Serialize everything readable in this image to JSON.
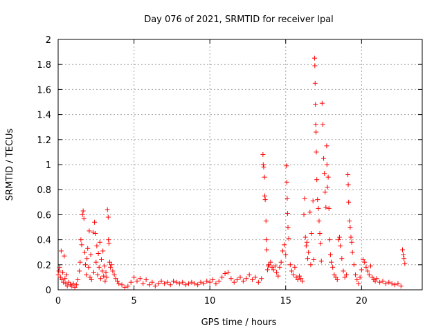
{
  "chart_data": {
    "type": "scatter",
    "title": "Day 076 of 2021, SRMTID for receiver lpal",
    "xlabel": "GPS time / hours",
    "ylabel": "SRMTID / TECUs",
    "xlim": [
      0,
      24
    ],
    "ylim": [
      0,
      2
    ],
    "xticks": [
      0,
      5,
      10,
      15,
      20
    ],
    "yticks": [
      0,
      0.2,
      0.4,
      0.6,
      0.8,
      1,
      1.2,
      1.4,
      1.6,
      1.8,
      2
    ],
    "grid": true,
    "marker": "+",
    "color": "#ff0000",
    "series": [
      {
        "name": "SRMTID",
        "points": [
          [
            0.0,
            0.12
          ],
          [
            0.05,
            0.15
          ],
          [
            0.1,
            0.18
          ],
          [
            0.15,
            0.1
          ],
          [
            0.2,
            0.31
          ],
          [
            0.25,
            0.08
          ],
          [
            0.3,
            0.14
          ],
          [
            0.35,
            0.06
          ],
          [
            0.4,
            0.27
          ],
          [
            0.45,
            0.09
          ],
          [
            0.5,
            0.05
          ],
          [
            0.55,
            0.12
          ],
          [
            0.6,
            0.03
          ],
          [
            0.7,
            0.06
          ],
          [
            0.8,
            0.04
          ],
          [
            0.9,
            0.03
          ],
          [
            1.0,
            0.05
          ],
          [
            1.1,
            0.02
          ],
          [
            1.2,
            0.04
          ],
          [
            1.3,
            0.08
          ],
          [
            1.4,
            0.15
          ],
          [
            1.45,
            0.22
          ],
          [
            1.5,
            0.4
          ],
          [
            1.55,
            0.36
          ],
          [
            1.6,
            0.6
          ],
          [
            1.65,
            0.63
          ],
          [
            1.7,
            0.57
          ],
          [
            1.75,
            0.3
          ],
          [
            1.8,
            0.2
          ],
          [
            1.85,
            0.12
          ],
          [
            1.9,
            0.25
          ],
          [
            1.95,
            0.33
          ],
          [
            2.0,
            0.18
          ],
          [
            2.05,
            0.47
          ],
          [
            2.1,
            0.1
          ],
          [
            2.15,
            0.28
          ],
          [
            2.2,
            0.08
          ],
          [
            2.3,
            0.46
          ],
          [
            2.35,
            0.14
          ],
          [
            2.4,
            0.54
          ],
          [
            2.45,
            0.45
          ],
          [
            2.5,
            0.22
          ],
          [
            2.55,
            0.35
          ],
          [
            2.6,
            0.12
          ],
          [
            2.65,
            0.29
          ],
          [
            2.7,
            0.18
          ],
          [
            2.75,
            0.38
          ],
          [
            2.8,
            0.09
          ],
          [
            2.85,
            0.24
          ],
          [
            2.9,
            0.15
          ],
          [
            2.95,
            0.31
          ],
          [
            3.0,
            0.11
          ],
          [
            3.05,
            0.19
          ],
          [
            3.1,
            0.07
          ],
          [
            3.15,
            0.14
          ],
          [
            3.2,
            0.1
          ],
          [
            3.25,
            0.64
          ],
          [
            3.3,
            0.58
          ],
          [
            3.32,
            0.4
          ],
          [
            3.35,
            0.37
          ],
          [
            3.4,
            0.22
          ],
          [
            3.45,
            0.18
          ],
          [
            3.5,
            0.2
          ],
          [
            3.6,
            0.15
          ],
          [
            3.7,
            0.12
          ],
          [
            3.8,
            0.09
          ],
          [
            3.9,
            0.07
          ],
          [
            4.0,
            0.05
          ],
          [
            4.2,
            0.04
          ],
          [
            4.4,
            0.02
          ],
          [
            4.6,
            0.03
          ],
          [
            4.8,
            0.06
          ],
          [
            5.0,
            0.1
          ],
          [
            5.2,
            0.07
          ],
          [
            5.4,
            0.09
          ],
          [
            5.6,
            0.05
          ],
          [
            5.8,
            0.08
          ],
          [
            6.0,
            0.04
          ],
          [
            6.2,
            0.06
          ],
          [
            6.4,
            0.03
          ],
          [
            6.6,
            0.05
          ],
          [
            6.8,
            0.07
          ],
          [
            7.0,
            0.05
          ],
          [
            7.2,
            0.06
          ],
          [
            7.4,
            0.04
          ],
          [
            7.6,
            0.07
          ],
          [
            7.8,
            0.06
          ],
          [
            8.0,
            0.05
          ],
          [
            8.2,
            0.06
          ],
          [
            8.4,
            0.04
          ],
          [
            8.6,
            0.05
          ],
          [
            8.8,
            0.06
          ],
          [
            9.0,
            0.05
          ],
          [
            9.2,
            0.04
          ],
          [
            9.4,
            0.06
          ],
          [
            9.6,
            0.05
          ],
          [
            9.8,
            0.07
          ],
          [
            10.0,
            0.06
          ],
          [
            10.2,
            0.08
          ],
          [
            10.4,
            0.05
          ],
          [
            10.6,
            0.07
          ],
          [
            10.8,
            0.1
          ],
          [
            11.0,
            0.13
          ],
          [
            11.2,
            0.14
          ],
          [
            11.4,
            0.09
          ],
          [
            11.6,
            0.06
          ],
          [
            11.8,
            0.08
          ],
          [
            12.0,
            0.1
          ],
          [
            12.2,
            0.07
          ],
          [
            12.4,
            0.09
          ],
          [
            12.6,
            0.12
          ],
          [
            12.8,
            0.08
          ],
          [
            13.0,
            0.1
          ],
          [
            13.2,
            0.06
          ],
          [
            13.4,
            0.09
          ],
          [
            13.5,
            1.08
          ],
          [
            13.52,
            1.0
          ],
          [
            13.55,
            0.98
          ],
          [
            13.6,
            0.9
          ],
          [
            13.62,
            0.75
          ],
          [
            13.65,
            0.72
          ],
          [
            13.7,
            0.55
          ],
          [
            13.72,
            0.4
          ],
          [
            13.75,
            0.32
          ],
          [
            13.8,
            0.16
          ],
          [
            13.85,
            0.19
          ],
          [
            13.9,
            0.2
          ],
          [
            14.0,
            0.22
          ],
          [
            14.1,
            0.18
          ],
          [
            14.2,
            0.16
          ],
          [
            14.3,
            0.19
          ],
          [
            14.4,
            0.14
          ],
          [
            14.5,
            0.11
          ],
          [
            14.6,
            0.18
          ],
          [
            14.7,
            0.22
          ],
          [
            14.8,
            0.31
          ],
          [
            14.9,
            0.36
          ],
          [
            15.0,
            0.28
          ],
          [
            15.05,
            0.99
          ],
          [
            15.08,
            0.86
          ],
          [
            15.1,
            0.73
          ],
          [
            15.12,
            0.61
          ],
          [
            15.15,
            0.5
          ],
          [
            15.2,
            0.41
          ],
          [
            15.3,
            0.2
          ],
          [
            15.4,
            0.15
          ],
          [
            15.5,
            0.12
          ],
          [
            15.6,
            0.18
          ],
          [
            15.7,
            0.1
          ],
          [
            15.8,
            0.08
          ],
          [
            15.9,
            0.11
          ],
          [
            16.0,
            0.09
          ],
          [
            16.1,
            0.07
          ],
          [
            16.2,
            0.6
          ],
          [
            16.25,
            0.73
          ],
          [
            16.3,
            0.42
          ],
          [
            16.35,
            0.35
          ],
          [
            16.4,
            0.38
          ],
          [
            16.45,
            0.25
          ],
          [
            16.5,
            0.3
          ],
          [
            16.6,
            0.62
          ],
          [
            16.65,
            0.2
          ],
          [
            16.7,
            0.45
          ],
          [
            16.8,
            0.71
          ],
          [
            16.85,
            0.24
          ],
          [
            16.9,
            1.85
          ],
          [
            16.92,
            1.79
          ],
          [
            16.94,
            1.65
          ],
          [
            16.96,
            1.48
          ],
          [
            16.98,
            1.32
          ],
          [
            17.0,
            1.26
          ],
          [
            17.02,
            1.1
          ],
          [
            17.05,
            0.88
          ],
          [
            17.1,
            0.72
          ],
          [
            17.15,
            0.65
          ],
          [
            17.2,
            0.55
          ],
          [
            17.25,
            0.45
          ],
          [
            17.3,
            0.37
          ],
          [
            17.35,
            0.23
          ],
          [
            17.4,
            1.49
          ],
          [
            17.45,
            1.32
          ],
          [
            17.5,
            1.05
          ],
          [
            17.55,
            0.93
          ],
          [
            17.6,
            0.78
          ],
          [
            17.65,
            0.66
          ],
          [
            17.7,
            1.15
          ],
          [
            17.72,
            1.0
          ],
          [
            17.75,
            0.82
          ],
          [
            17.8,
            0.9
          ],
          [
            17.85,
            0.65
          ],
          [
            17.9,
            0.4
          ],
          [
            17.95,
            0.28
          ],
          [
            18.0,
            0.22
          ],
          [
            18.1,
            0.18
          ],
          [
            18.2,
            0.12
          ],
          [
            18.3,
            0.1
          ],
          [
            18.4,
            0.08
          ],
          [
            18.5,
            0.4
          ],
          [
            18.55,
            0.42
          ],
          [
            18.6,
            0.35
          ],
          [
            18.7,
            0.25
          ],
          [
            18.8,
            0.15
          ],
          [
            18.9,
            0.1
          ],
          [
            19.0,
            0.12
          ],
          [
            19.1,
            0.92
          ],
          [
            19.12,
            0.84
          ],
          [
            19.15,
            0.7
          ],
          [
            19.2,
            0.55
          ],
          [
            19.25,
            0.5
          ],
          [
            19.3,
            0.42
          ],
          [
            19.35,
            0.38
          ],
          [
            19.4,
            0.3
          ],
          [
            19.5,
            0.2
          ],
          [
            19.6,
            0.12
          ],
          [
            19.7,
            0.08
          ],
          [
            19.8,
            0.05
          ],
          [
            19.9,
            0.1
          ],
          [
            20.0,
            0.16
          ],
          [
            20.1,
            0.24
          ],
          [
            20.2,
            0.22
          ],
          [
            20.3,
            0.18
          ],
          [
            20.4,
            0.15
          ],
          [
            20.5,
            0.12
          ],
          [
            20.6,
            0.19
          ],
          [
            20.7,
            0.1
          ],
          [
            20.8,
            0.08
          ],
          [
            20.9,
            0.07
          ],
          [
            21.0,
            0.09
          ],
          [
            21.2,
            0.06
          ],
          [
            21.4,
            0.07
          ],
          [
            21.6,
            0.05
          ],
          [
            21.8,
            0.06
          ],
          [
            22.0,
            0.05
          ],
          [
            22.2,
            0.04
          ],
          [
            22.4,
            0.05
          ],
          [
            22.6,
            0.03
          ],
          [
            22.7,
            0.32
          ],
          [
            22.75,
            0.28
          ],
          [
            22.8,
            0.25
          ],
          [
            22.85,
            0.21
          ]
        ]
      }
    ]
  }
}
